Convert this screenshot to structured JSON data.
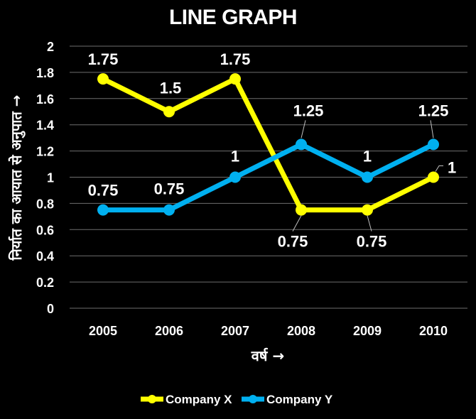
{
  "chart_data": {
    "type": "line",
    "title": "LINE GRAPH",
    "xlabel": "वर्ष →",
    "ylabel": "निर्यात का आयात से अनुपात →",
    "categories": [
      "2005",
      "2006",
      "2007",
      "2008",
      "2009",
      "2010"
    ],
    "ylim": [
      0,
      2
    ],
    "yticks": [
      "0",
      "0.2",
      "0.4",
      "0.6",
      "0.8",
      "1",
      "1.2",
      "1.4",
      "1.6",
      "1.8",
      "2"
    ],
    "grid": true,
    "legend_position": "bottom",
    "series": [
      {
        "name": "Company X",
        "color": "#ffff00",
        "values": [
          1.75,
          1.5,
          1.75,
          0.75,
          0.75,
          1
        ],
        "labels": [
          "1.75",
          "1.5",
          "1.75",
          "0.75",
          "0.75",
          "1"
        ]
      },
      {
        "name": "Company Y",
        "color": "#00b0f0",
        "values": [
          0.75,
          0.75,
          1,
          1.25,
          1,
          1.25
        ],
        "labels": [
          "0.75",
          "0.75",
          "1",
          "1.25",
          "1",
          "1.25"
        ]
      }
    ]
  }
}
